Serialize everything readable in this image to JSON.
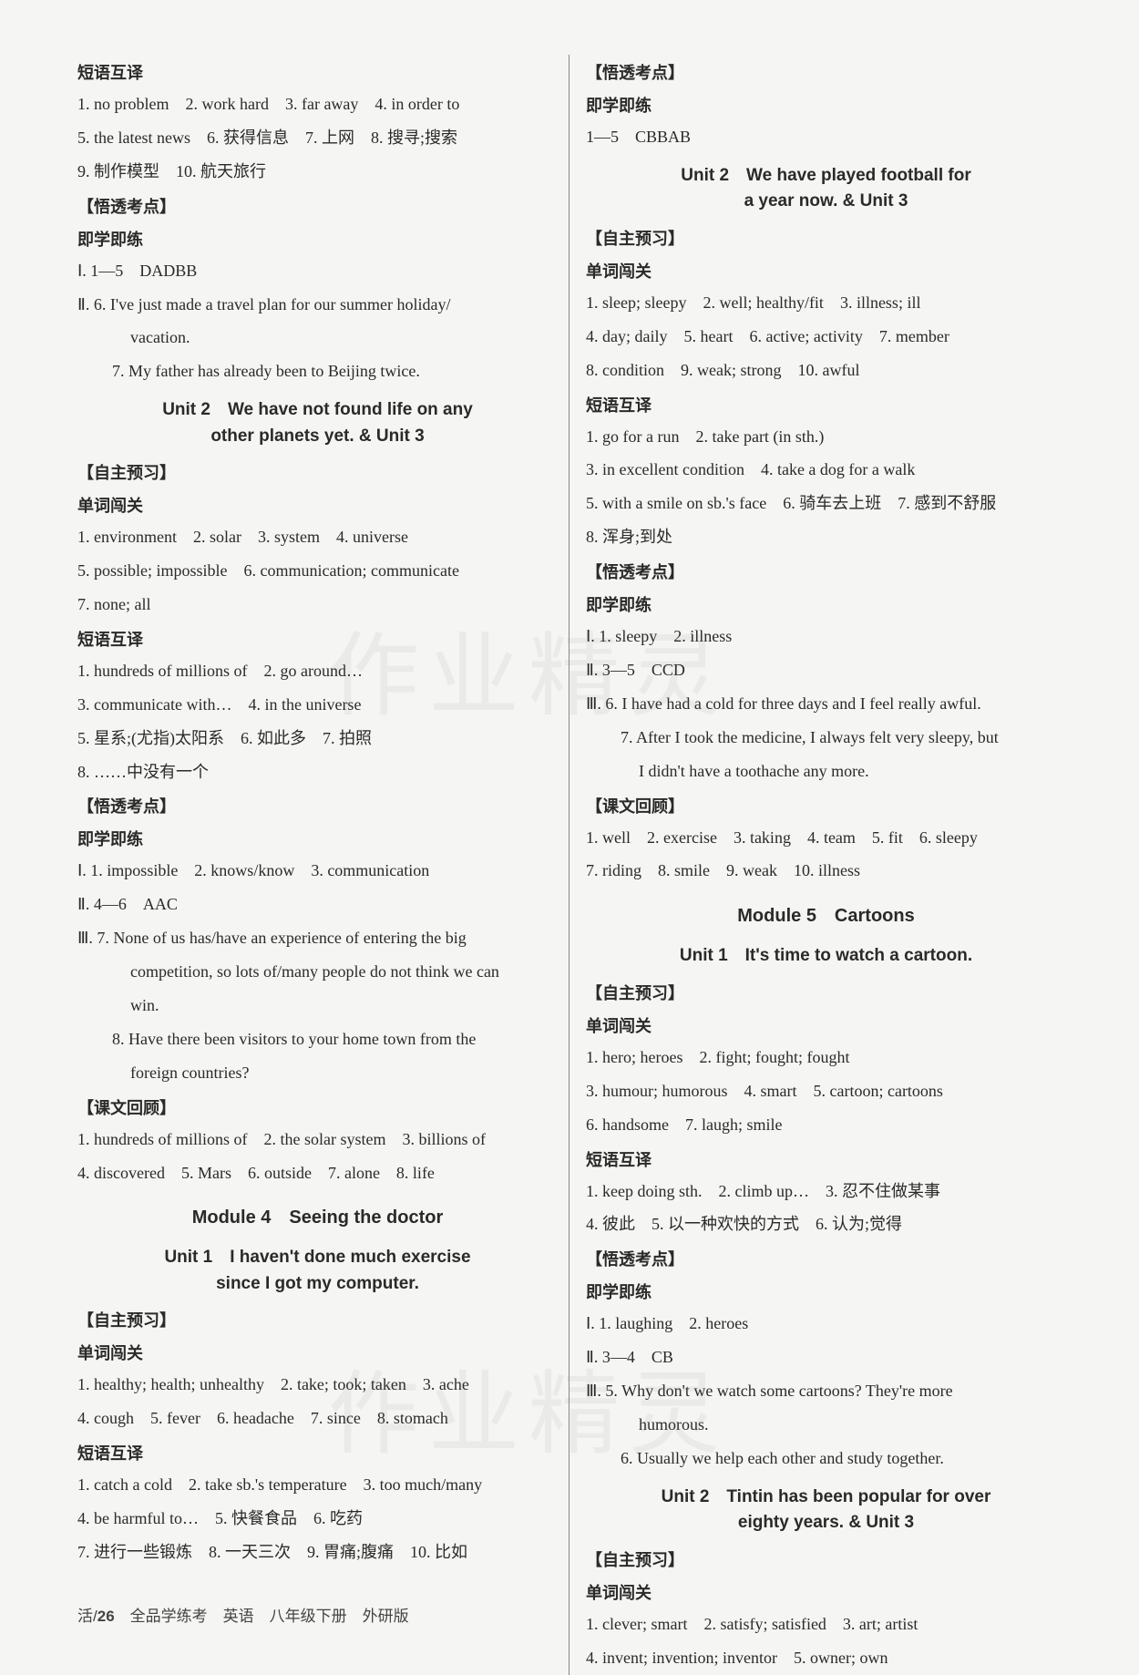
{
  "left": {
    "h1": "短语互译",
    "l1": "1. no problem　2. work hard　3. far away　4. in order to",
    "l2": "5. the latest news　6. 获得信息　7. 上网　8. 搜寻;搜索",
    "l3": "9. 制作模型　10. 航天旅行",
    "h2": "【悟透考点】",
    "h3": "即学即练",
    "l4": "Ⅰ. 1—5　DADBB",
    "l5": "Ⅱ. 6. I've just made a travel plan for our summer holiday/",
    "l5b": "vacation.",
    "l6": "7. My father has already been to Beijing twice.",
    "unit2": "Unit 2　We have not found life on any\nother planets yet. & Unit 3",
    "h4": "【自主预习】",
    "h5": "单词闯关",
    "l7": "1. environment　2. solar　3. system　4. universe",
    "l8": "5. possible; impossible　6. communication; communicate",
    "l9": "7. none; all",
    "h6": "短语互译",
    "l10": "1. hundreds of millions of　2. go around…",
    "l11": "3. communicate with…　4. in the universe",
    "l12": "5. 星系;(尤指)太阳系　6. 如此多　7. 拍照",
    "l13": "8. ……中没有一个",
    "h7": "【悟透考点】",
    "h8": "即学即练",
    "l14": "Ⅰ. 1. impossible　2. knows/know　3. communication",
    "l15": "Ⅱ. 4—6　AAC",
    "l16": "Ⅲ. 7. None of us has/have an experience of entering the big",
    "l16b": "competition, so lots of/many people do not think we can",
    "l16c": "win.",
    "l17": "8. Have there been visitors to your home town from the",
    "l17b": "foreign countries?",
    "h9": "【课文回顾】",
    "l18": "1. hundreds of millions of　2. the solar system　3. billions of",
    "l19": "4. discovered　5. Mars　6. outside　7. alone　8. life",
    "mod4": "Module 4　Seeing the doctor",
    "unit1_m4": "Unit 1　I haven't done much exercise\nsince I got my computer.",
    "h10": "【自主预习】",
    "h11": "单词闯关",
    "l20": "1. healthy; health; unhealthy　2. take; took; taken　3. ache",
    "l21": "4. cough　5. fever　6. headache　7. since　8. stomach",
    "h12": "短语互译",
    "l22": "1. catch a cold　2. take sb.'s temperature　3. too much/many",
    "l23": "4. be harmful to…　5. 快餐食品　6. 吃药",
    "l24": "7. 进行一些锻炼　8. 一天三次　9. 胃痛;腹痛　10. 比如"
  },
  "right": {
    "h1": "【悟透考点】",
    "h2": "即学即练",
    "r1": "1—5　CBBAB",
    "unit2_r": "Unit 2　We have played football for\na year now. & Unit 3",
    "h3": "【自主预习】",
    "h4": "单词闯关",
    "r2": "1. sleep; sleepy　2. well; healthy/fit　3. illness; ill",
    "r3": "4. day; daily　5. heart　6. active; activity　7. member",
    "r4": "8. condition　9. weak; strong　10. awful",
    "h5": "短语互译",
    "r5": "1. go for a run　2. take part (in sth.)",
    "r6": "3. in excellent condition　4. take a dog for a walk",
    "r7": "5. with a smile on sb.'s face　6. 骑车去上班　7. 感到不舒服",
    "r8": "8. 浑身;到处",
    "h6": "【悟透考点】",
    "h7": "即学即练",
    "r9": "Ⅰ. 1. sleepy　2. illness",
    "r10": "Ⅱ. 3—5　CCD",
    "r11": "Ⅲ. 6. I have had a cold for three days and I feel really awful.",
    "r12": "7. After I took the medicine, I always felt very sleepy, but",
    "r12b": "I didn't have a toothache any more.",
    "h8": "【课文回顾】",
    "r13": "1. well　2. exercise　3. taking　4. team　5. fit　6. sleepy",
    "r14": "7. riding　8. smile　9. weak　10. illness",
    "mod5": "Module 5　Cartoons",
    "unit1_m5": "Unit 1　It's time to watch a cartoon.",
    "h9": "【自主预习】",
    "h10": "单词闯关",
    "r15": "1. hero; heroes　2. fight; fought; fought",
    "r16": "3. humour; humorous　4. smart　5. cartoon; cartoons",
    "r17": "6. handsome　7. laugh; smile",
    "h11": "短语互译",
    "r18": "1. keep doing sth.　2. climb up…　3. 忍不住做某事",
    "r19": "4. 彼此　5. 以一种欢快的方式　6. 认为;觉得",
    "h12": "【悟透考点】",
    "h13": "即学即练",
    "r20": "Ⅰ. 1. laughing　2. heroes",
    "r21": "Ⅱ. 3—4　CB",
    "r22": "Ⅲ. 5. Why don't we watch some cartoons? They're more",
    "r22b": "humorous.",
    "r23": "6. Usually we help each other and study together.",
    "unit2_m5": "Unit 2　Tintin has been popular for over\neighty years. & Unit 3",
    "h14": "【自主预习】",
    "h15": "单词闯关",
    "r24": "1. clever; smart　2. satisfy; satisfied　3. art; artist",
    "r25": "4. invent; invention; inventor　5. owner; own"
  },
  "footer": {
    "prefix": "活/",
    "page": "26",
    "suffix": "　全品学练考　英语　八年级下册　外研版"
  },
  "watermark": "作业精灵"
}
